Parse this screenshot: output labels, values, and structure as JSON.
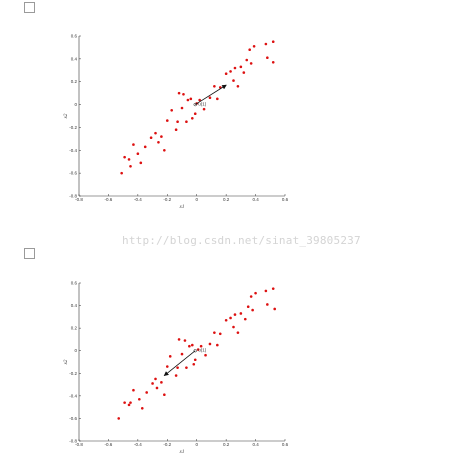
{
  "watermark": "http://blog.csdn.net/sinat_39805237",
  "colors": {
    "points": "#dd1111",
    "arrow": "#111111",
    "axis": "#333333"
  },
  "chart_data": [
    {
      "type": "scatter",
      "xlabel": "x1",
      "ylabel": "x2",
      "xlim": [
        -0.8,
        0.6
      ],
      "ylim": [
        -0.8,
        0.6
      ],
      "xticks": [
        "-0.8",
        "-0.6",
        "-0.4",
        "-0.2",
        "0",
        "0.2",
        "0.4",
        "0.6"
      ],
      "yticks": [
        "-0.8",
        "-0.6",
        "-0.4",
        "-0.2",
        "0",
        "0.2",
        "0.4",
        "0.6"
      ],
      "origin_label": "u(1)",
      "vector": {
        "from": [
          -0.01,
          0.0
        ],
        "to": [
          0.2,
          0.17
        ]
      },
      "points": [
        [
          -0.51,
          -0.6
        ],
        [
          -0.49,
          -0.46
        ],
        [
          -0.46,
          -0.48
        ],
        [
          -0.45,
          -0.54
        ],
        [
          -0.43,
          -0.35
        ],
        [
          -0.4,
          -0.43
        ],
        [
          -0.38,
          -0.51
        ],
        [
          -0.35,
          -0.37
        ],
        [
          -0.31,
          -0.29
        ],
        [
          -0.28,
          -0.25
        ],
        [
          -0.26,
          -0.33
        ],
        [
          -0.24,
          -0.28
        ],
        [
          -0.22,
          -0.4
        ],
        [
          -0.2,
          -0.14
        ],
        [
          -0.17,
          -0.05
        ],
        [
          -0.14,
          -0.22
        ],
        [
          -0.13,
          -0.15
        ],
        [
          -0.12,
          0.1
        ],
        [
          -0.1,
          -0.03
        ],
        [
          -0.09,
          0.09
        ],
        [
          -0.07,
          -0.15
        ],
        [
          -0.06,
          0.04
        ],
        [
          -0.04,
          0.05
        ],
        [
          -0.03,
          -0.12
        ],
        [
          -0.01,
          -0.08
        ],
        [
          0.0,
          0.01
        ],
        [
          0.02,
          0.04
        ],
        [
          0.05,
          -0.04
        ],
        [
          0.09,
          0.06
        ],
        [
          0.12,
          0.16
        ],
        [
          0.14,
          0.05
        ],
        [
          0.16,
          0.15
        ],
        [
          0.2,
          0.27
        ],
        [
          0.23,
          0.29
        ],
        [
          0.25,
          0.21
        ],
        [
          0.26,
          0.32
        ],
        [
          0.28,
          0.16
        ],
        [
          0.3,
          0.33
        ],
        [
          0.32,
          0.28
        ],
        [
          0.34,
          0.39
        ],
        [
          0.36,
          0.48
        ],
        [
          0.37,
          0.36
        ],
        [
          0.39,
          0.51
        ],
        [
          0.47,
          0.53
        ],
        [
          0.48,
          0.41
        ],
        [
          0.52,
          0.55
        ],
        [
          0.52,
          0.37
        ]
      ]
    },
    {
      "type": "scatter",
      "xlabel": "x1",
      "ylabel": "x2",
      "xlim": [
        -0.8,
        0.6
      ],
      "ylim": [
        -0.8,
        0.6
      ],
      "xticks": [
        "-0.8",
        "-0.6",
        "-0.4",
        "-0.2",
        "0",
        "0.2",
        "0.4",
        "0.6"
      ],
      "yticks": [
        "-0.8",
        "-0.6",
        "-0.4",
        "-0.2",
        "0",
        "0.2",
        "0.4",
        "0.6"
      ],
      "origin_label": "u(1)",
      "vector": {
        "from": [
          -0.01,
          0.0
        ],
        "to": [
          -0.22,
          -0.22
        ]
      },
      "points": [
        [
          -0.53,
          -0.6
        ],
        [
          -0.49,
          -0.46
        ],
        [
          -0.46,
          -0.48
        ],
        [
          -0.45,
          -0.46
        ],
        [
          -0.43,
          -0.35
        ],
        [
          -0.39,
          -0.43
        ],
        [
          -0.37,
          -0.51
        ],
        [
          -0.34,
          -0.37
        ],
        [
          -0.3,
          -0.29
        ],
        [
          -0.28,
          -0.25
        ],
        [
          -0.27,
          -0.33
        ],
        [
          -0.24,
          -0.28
        ],
        [
          -0.22,
          -0.39
        ],
        [
          -0.2,
          -0.14
        ],
        [
          -0.18,
          -0.05
        ],
        [
          -0.14,
          -0.22
        ],
        [
          -0.13,
          -0.15
        ],
        [
          -0.12,
          0.1
        ],
        [
          -0.1,
          -0.03
        ],
        [
          -0.08,
          0.09
        ],
        [
          -0.07,
          -0.15
        ],
        [
          -0.05,
          0.04
        ],
        [
          -0.03,
          0.05
        ],
        [
          -0.02,
          -0.12
        ],
        [
          -0.01,
          -0.08
        ],
        [
          0.01,
          0.01
        ],
        [
          0.03,
          0.04
        ],
        [
          0.06,
          -0.04
        ],
        [
          0.09,
          0.06
        ],
        [
          0.12,
          0.16
        ],
        [
          0.14,
          0.05
        ],
        [
          0.16,
          0.15
        ],
        [
          0.2,
          0.27
        ],
        [
          0.23,
          0.29
        ],
        [
          0.25,
          0.21
        ],
        [
          0.26,
          0.32
        ],
        [
          0.28,
          0.16
        ],
        [
          0.3,
          0.33
        ],
        [
          0.33,
          0.28
        ],
        [
          0.35,
          0.39
        ],
        [
          0.37,
          0.48
        ],
        [
          0.38,
          0.36
        ],
        [
          0.4,
          0.51
        ],
        [
          0.47,
          0.53
        ],
        [
          0.48,
          0.41
        ],
        [
          0.52,
          0.55
        ],
        [
          0.53,
          0.37
        ]
      ]
    }
  ]
}
